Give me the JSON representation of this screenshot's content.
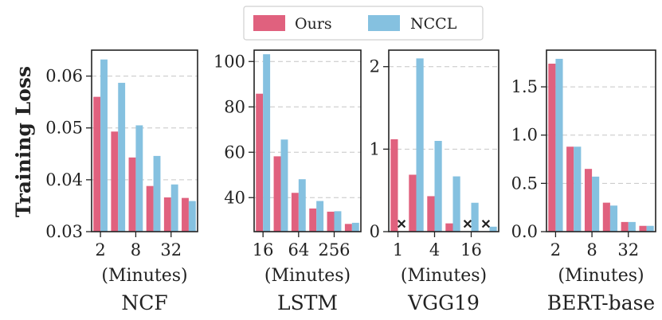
{
  "legend": {
    "series": [
      {
        "name": "Ours",
        "color": "#e0617e"
      },
      {
        "name": "NCCL",
        "color": "#85c1e0"
      }
    ]
  },
  "ylabel": "Training Loss",
  "chart_data": [
    {
      "type": "bar",
      "title": "NCF",
      "xlabel": "(Minutes)",
      "xtick_labels": [
        "2",
        "8",
        "32"
      ],
      "xtick_positions": [
        0,
        2,
        4
      ],
      "ylim": [
        0.03,
        0.065
      ],
      "yticks": [
        0.03,
        0.04,
        0.05,
        0.06
      ],
      "ytick_labels": [
        "0.03",
        "0.04",
        "0.05",
        "0.06"
      ],
      "grid": true,
      "series": [
        {
          "name": "Ours",
          "values": [
            0.056,
            0.0493,
            0.0443,
            0.0388,
            0.0366,
            0.0365
          ]
        },
        {
          "name": "NCCL",
          "values": [
            0.0632,
            0.0587,
            0.0505,
            0.0446,
            0.0391,
            0.0359
          ]
        }
      ],
      "missing": []
    },
    {
      "type": "bar",
      "title": "LSTM",
      "xlabel": "(Minutes)",
      "xtick_labels": [
        "16",
        "64",
        "256"
      ],
      "xtick_positions": [
        0,
        2,
        4
      ],
      "ylim": [
        25,
        105
      ],
      "yticks": [
        40,
        60,
        80,
        100
      ],
      "ytick_labels": [
        "40",
        "60",
        "80",
        "100"
      ],
      "grid": true,
      "series": [
        {
          "name": "Ours",
          "values": [
            85.8,
            58.2,
            42.1,
            35.2,
            33.8,
            28.4
          ]
        },
        {
          "name": "NCCL",
          "values": [
            103.2,
            65.6,
            48.1,
            38.5,
            34.0,
            28.9
          ]
        }
      ],
      "missing": []
    },
    {
      "type": "bar",
      "title": "VGG19",
      "xlabel": "(Minutes)",
      "xtick_labels": [
        "1",
        "4",
        "16"
      ],
      "xtick_positions": [
        0,
        2,
        4
      ],
      "ylim": [
        0,
        2.2
      ],
      "yticks": [
        0,
        1,
        2
      ],
      "ytick_labels": [
        "0",
        "1",
        "2"
      ],
      "grid": true,
      "series": [
        {
          "name": "Ours",
          "values": [
            1.12,
            0.69,
            0.43,
            0.1,
            null,
            null
          ]
        },
        {
          "name": "NCCL",
          "values": [
            null,
            2.1,
            1.1,
            0.67,
            0.35,
            0.06
          ]
        }
      ],
      "missing": [
        {
          "series": "NCCL",
          "index": 0,
          "marker": "✕"
        },
        {
          "series": "Ours",
          "index": 4,
          "marker": "✕"
        },
        {
          "series": "Ours",
          "index": 5,
          "marker": "✕"
        }
      ]
    },
    {
      "type": "bar",
      "title": "BERT-base",
      "xlabel": "(Minutes)",
      "xtick_labels": [
        "2",
        "8",
        "32"
      ],
      "xtick_positions": [
        0,
        2,
        4
      ],
      "ylim": [
        0,
        1.88
      ],
      "yticks": [
        0,
        0.5,
        1.0,
        1.5
      ],
      "ytick_labels": [
        "0.0",
        "0.5",
        "1.0",
        "1.5"
      ],
      "grid": true,
      "series": [
        {
          "name": "Ours",
          "values": [
            1.74,
            0.88,
            0.65,
            0.3,
            0.1,
            0.06
          ]
        },
        {
          "name": "NCCL",
          "values": [
            1.79,
            0.88,
            0.57,
            0.27,
            0.1,
            0.06
          ]
        }
      ],
      "missing": []
    }
  ]
}
